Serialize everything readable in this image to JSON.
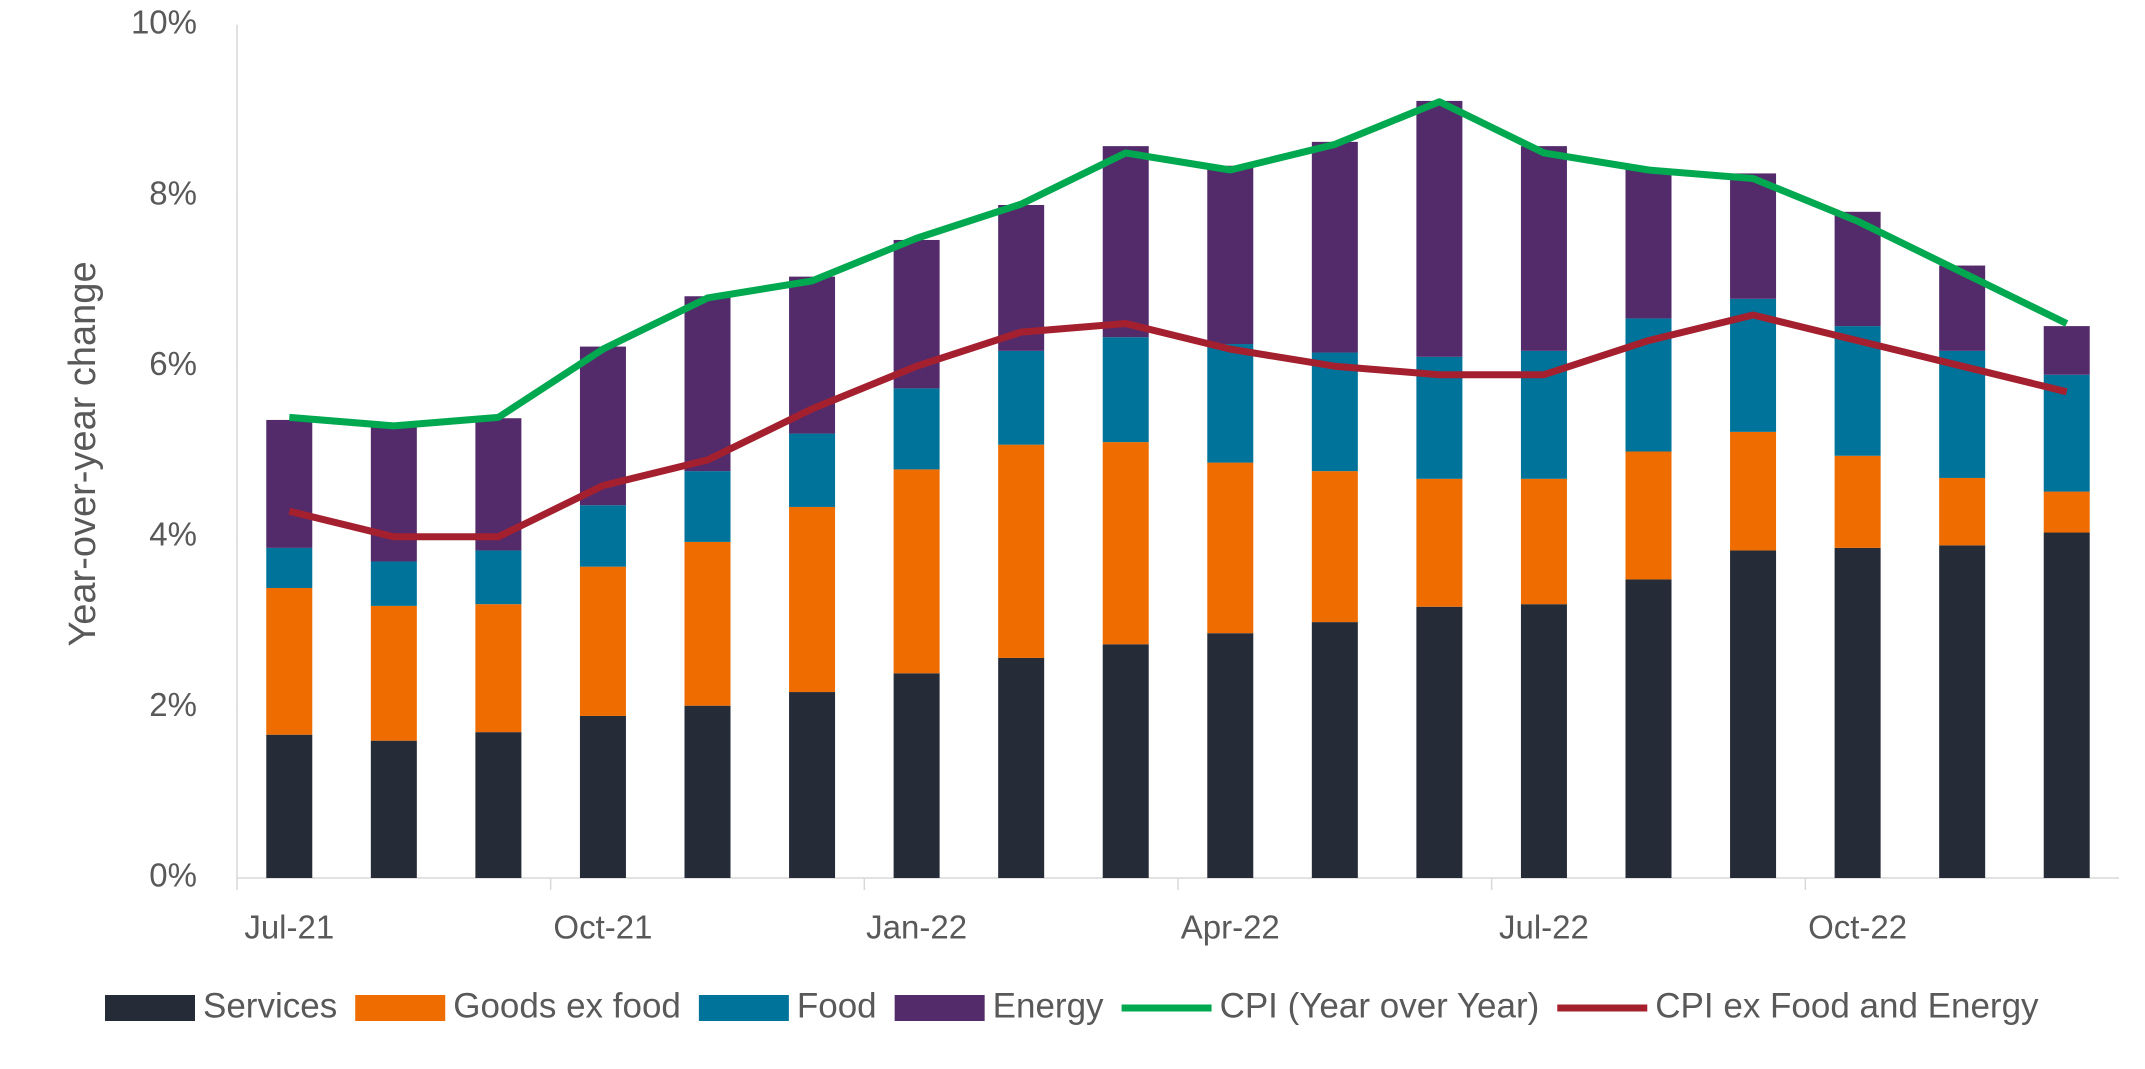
{
  "chart_data": {
    "type": "bar",
    "stacked": true,
    "y_label": "Year-over-year change",
    "categories": [
      "Jul-21",
      null,
      null,
      "Oct-21",
      null,
      null,
      "Jan-22",
      null,
      null,
      "Apr-22",
      null,
      null,
      "Jul-22",
      null,
      null,
      "Oct-22",
      null,
      null
    ],
    "series": [
      {
        "name": "Services",
        "type": "bar",
        "color": "#262b38",
        "values": [
          1.68,
          1.61,
          1.71,
          1.9,
          2.02,
          2.18,
          2.4,
          2.58,
          2.74,
          2.87,
          3.0,
          3.18,
          3.21,
          3.5,
          3.84,
          3.87,
          3.9,
          4.05
        ]
      },
      {
        "name": "Goods ex food",
        "type": "bar",
        "color": "#ee6c00",
        "values": [
          1.72,
          1.58,
          1.5,
          1.75,
          1.92,
          2.17,
          2.39,
          2.5,
          2.37,
          2.0,
          1.77,
          1.5,
          1.47,
          1.5,
          1.39,
          1.08,
          0.79,
          0.48
        ]
      },
      {
        "name": "Food",
        "type": "bar",
        "color": "#00739a",
        "values": [
          0.47,
          0.52,
          0.63,
          0.72,
          0.83,
          0.86,
          0.95,
          1.1,
          1.23,
          1.39,
          1.39,
          1.43,
          1.5,
          1.56,
          1.56,
          1.52,
          1.49,
          1.37
        ]
      },
      {
        "name": "Energy",
        "type": "bar",
        "color": "#532b6b",
        "values": [
          1.5,
          1.58,
          1.55,
          1.86,
          2.05,
          1.84,
          1.74,
          1.71,
          2.24,
          2.09,
          2.47,
          3.0,
          2.4,
          1.75,
          1.47,
          1.34,
          1.0,
          0.57
        ]
      },
      {
        "name": "CPI (Year over Year)",
        "type": "line",
        "color": "#00a850",
        "values": [
          5.4,
          5.3,
          5.4,
          6.2,
          6.8,
          7.0,
          7.5,
          7.9,
          8.5,
          8.3,
          8.6,
          9.1,
          8.5,
          8.3,
          8.2,
          7.7,
          7.1,
          6.5
        ]
      },
      {
        "name": "CPI ex Food and Energy",
        "type": "line",
        "color": "#a4202f",
        "values": [
          4.3,
          4.0,
          4.0,
          4.6,
          4.9,
          5.5,
          6.0,
          6.4,
          6.5,
          6.2,
          6.0,
          5.9,
          5.9,
          6.3,
          6.6,
          6.3,
          6.0,
          5.7
        ]
      }
    ],
    "ylim": [
      0,
      10
    ],
    "yticks": [
      {
        "value": 0,
        "label": "0%"
      },
      {
        "value": 2,
        "label": "2%"
      },
      {
        "value": 4,
        "label": "4%"
      },
      {
        "value": 6,
        "label": "6%"
      },
      {
        "value": 8,
        "label": "8%"
      },
      {
        "value": 10,
        "label": "10%"
      }
    ],
    "grid": false,
    "legend": "bottom"
  }
}
